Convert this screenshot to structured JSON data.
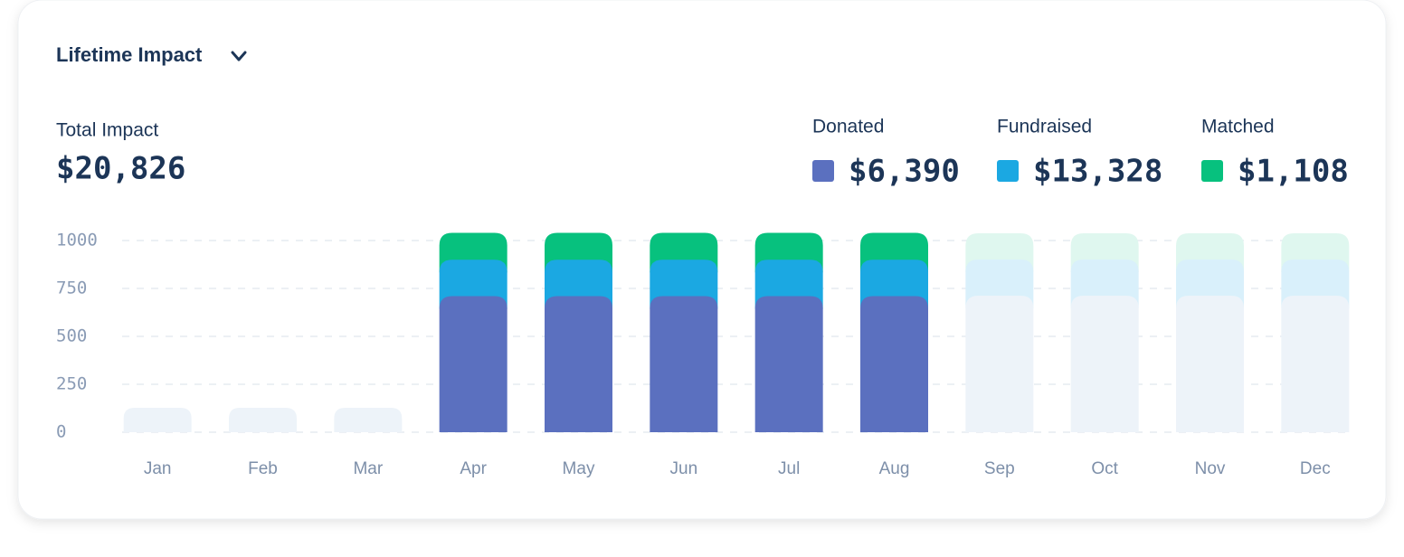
{
  "header": {
    "title": "Lifetime Impact"
  },
  "summary": {
    "label": "Total Impact",
    "value": "$20,826"
  },
  "chart_data": {
    "type": "stacked_bar",
    "categories": [
      "Jan",
      "Feb",
      "Mar",
      "Apr",
      "May",
      "Jun",
      "Jul",
      "Aug",
      "Sep",
      "Oct",
      "Nov",
      "Dec"
    ],
    "series": [
      {
        "name": "Donated",
        "total": "$6,390",
        "color": "#5b70bf",
        "values": [
          null,
          null,
          null,
          710,
          710,
          710,
          710,
          710,
          null,
          null,
          null,
          null
        ]
      },
      {
        "name": "Fundraised",
        "total": "$13,328",
        "color": "#1ba8e2",
        "values": [
          null,
          null,
          null,
          190,
          190,
          190,
          190,
          190,
          null,
          null,
          null,
          null
        ]
      },
      {
        "name": "Matched",
        "total": "$1,108",
        "color": "#07c17e",
        "values": [
          null,
          null,
          null,
          140,
          140,
          140,
          140,
          140,
          null,
          null,
          null,
          null
        ]
      }
    ],
    "ylim": [
      0,
      1000
    ],
    "yticks": [
      0,
      250,
      500,
      750,
      1000
    ],
    "grid": true
  }
}
